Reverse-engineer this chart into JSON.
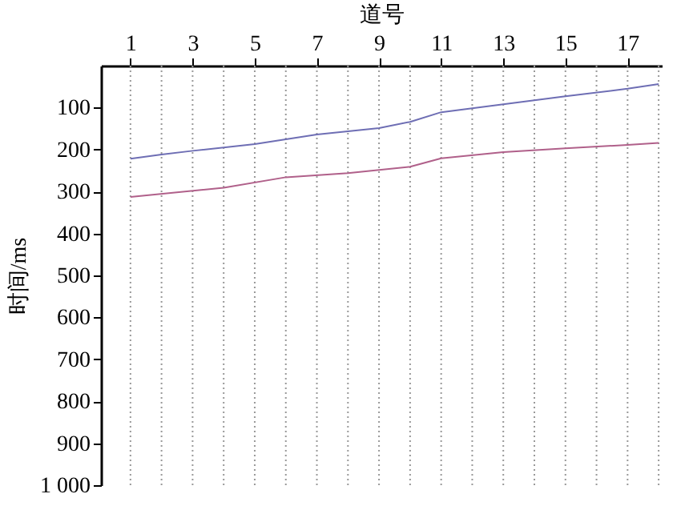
{
  "chart_data": {
    "type": "line",
    "xlabel": "道号",
    "ylabel": "时间/ms",
    "xlim": [
      0.05,
      18.1
    ],
    "xticks": [
      1,
      3,
      5,
      7,
      9,
      11,
      13,
      15,
      17
    ],
    "ylim": [
      1000,
      0
    ],
    "yticks": [
      100,
      200,
      300,
      400,
      500,
      600,
      700,
      800,
      900,
      {
        "value": 1000,
        "label": "1 000"
      }
    ],
    "grid": false,
    "marker": "none",
    "line_style": "solid",
    "series": [
      {
        "color": "#6e6eb4",
        "x": [
          1,
          2,
          3,
          5,
          7,
          9,
          10,
          11,
          13,
          15,
          17,
          18
        ],
        "values": [
          222,
          212,
          203,
          187,
          164,
          149,
          134,
          111,
          92,
          73,
          55,
          44
        ]
      },
      {
        "color": "#b0608a",
        "x": [
          1,
          4,
          6,
          8,
          10,
          11,
          13,
          15,
          17,
          18
        ],
        "values": [
          313,
          291,
          266,
          256,
          241,
          221,
          206,
          197,
          189,
          184
        ]
      }
    ],
    "ref_lines": [
      {
        "axis": "x",
        "value": 1,
        "color": "#999999",
        "line_style": "dotted"
      },
      {
        "axis": "x",
        "value": 2,
        "color": "#999999",
        "line_style": "dotted"
      },
      {
        "axis": "x",
        "value": 3,
        "color": "#999999",
        "line_style": "dotted"
      },
      {
        "axis": "x",
        "value": 4,
        "color": "#999999",
        "line_style": "dotted"
      },
      {
        "axis": "x",
        "value": 5,
        "color": "#999999",
        "line_style": "dotted"
      },
      {
        "axis": "x",
        "value": 6,
        "color": "#999999",
        "line_style": "dotted"
      },
      {
        "axis": "x",
        "value": 7,
        "color": "#999999",
        "line_style": "dotted"
      },
      {
        "axis": "x",
        "value": 8,
        "color": "#999999",
        "line_style": "dotted"
      },
      {
        "axis": "x",
        "value": 9,
        "color": "#999999",
        "line_style": "dotted"
      },
      {
        "axis": "x",
        "value": 10,
        "color": "#999999",
        "line_style": "dotted"
      },
      {
        "axis": "x",
        "value": 11,
        "color": "#999999",
        "line_style": "dotted"
      },
      {
        "axis": "x",
        "value": 12,
        "color": "#999999",
        "line_style": "dotted"
      },
      {
        "axis": "x",
        "value": 13,
        "color": "#999999",
        "line_style": "dotted"
      },
      {
        "axis": "x",
        "value": 14,
        "color": "#999999",
        "line_style": "dotted"
      },
      {
        "axis": "x",
        "value": 15,
        "color": "#999999",
        "line_style": "dotted"
      },
      {
        "axis": "x",
        "value": 16,
        "color": "#999999",
        "line_style": "dotted"
      },
      {
        "axis": "x",
        "value": 17,
        "color": "#999999",
        "line_style": "dotted"
      },
      {
        "axis": "x",
        "value": 18,
        "color": "#999999",
        "line_style": "dotted"
      }
    ]
  }
}
